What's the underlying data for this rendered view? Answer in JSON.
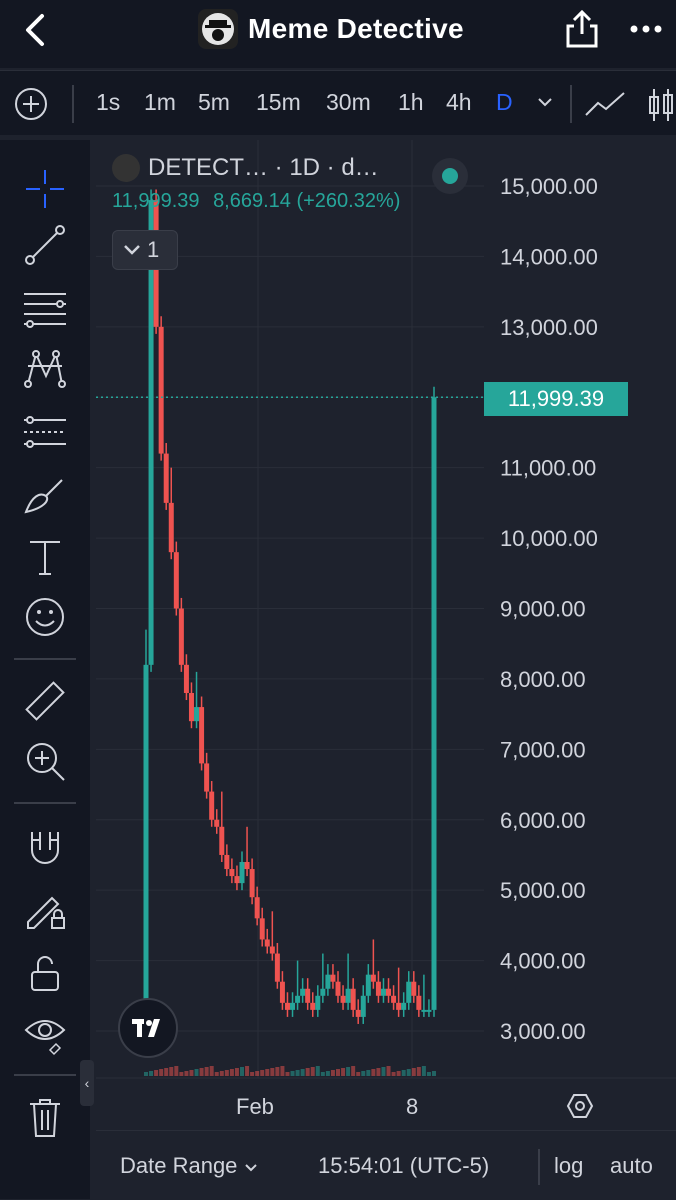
{
  "header": {
    "title": "Meme Detective"
  },
  "intervals": [
    "1s",
    "1m",
    "5m",
    "15m",
    "30m",
    "1h",
    "4h",
    "D"
  ],
  "active_interval": "D",
  "toolbar_icons": [
    "crosshair-icon",
    "trend-line-icon",
    "fib-levels-icon",
    "pattern-icon",
    "projection-icon",
    "brush-icon",
    "text-icon",
    "emoji-icon",
    "ruler-icon",
    "zoom-in-icon",
    "magnet-icon",
    "lock-drawing-icon",
    "unlock-icon",
    "eye-icon",
    "trash-icon"
  ],
  "legend": {
    "symbol": "DETECT… · 1D · d…",
    "price": "11,999.39",
    "change": "8,669.14 (+260.32%)",
    "collapsed_count": "1"
  },
  "colors": {
    "up": "#26a69a",
    "down": "#ef5350",
    "accent": "#2962ff",
    "background": "#1e222d"
  },
  "chart_data": {
    "type": "candlestick",
    "y_ticks": [
      "15,000.00",
      "14,000.00",
      "13,000.00",
      "12,000.00",
      "11,000.00",
      "10,000.00",
      "9,000.00",
      "8,000.00",
      "7,000.00",
      "6,000.00",
      "5,000.00",
      "4,000.00",
      "3,000.00"
    ],
    "y_tick_values": [
      15000,
      14000,
      13000,
      12000,
      11000,
      10000,
      9000,
      8000,
      7000,
      6000,
      5000,
      4000,
      3000
    ],
    "x_ticks": [
      "Feb",
      "8"
    ],
    "current_price_label": "11,999.39",
    "current_price": 11999.39,
    "series_closes": [
      8200,
      14800,
      13000,
      11200,
      10500,
      9800,
      9000,
      8200,
      7800,
      7400,
      7600,
      6800,
      6400,
      6000,
      5900,
      5500,
      5300,
      5200,
      5100,
      5400,
      5300,
      4900,
      4600,
      4300,
      4200,
      4100,
      3700,
      3400,
      3300,
      3400,
      3500,
      3600,
      3400,
      3300,
      3500,
      3600,
      3800,
      3700,
      3500,
      3400,
      3600,
      3300,
      3200,
      3500,
      3800,
      3700,
      3500,
      3600,
      3500,
      3400,
      3300,
      3400,
      3700,
      3500,
      3300,
      3300,
      3300,
      12000
    ]
  },
  "bottom": {
    "date_range": "Date Range",
    "time": "15:54:01 (UTC-5)",
    "log": "log",
    "auto": "auto"
  }
}
